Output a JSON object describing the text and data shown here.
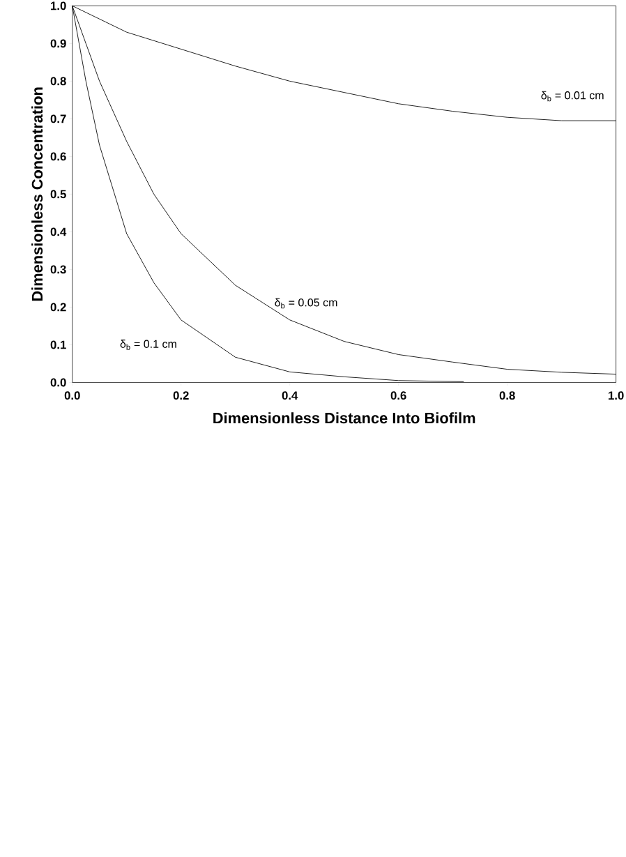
{
  "chart_data": {
    "type": "line",
    "xlabel": "Dimensionless Distance Into Biofilm",
    "ylabel": "Dimensionless Concentration",
    "xlim": [
      0,
      1
    ],
    "ylim": [
      0,
      1
    ],
    "xticks": [
      {
        "value": 0,
        "label": "0.0"
      },
      {
        "value": 0.2,
        "label": "0.2"
      },
      {
        "value": 0.4,
        "label": "0.4"
      },
      {
        "value": 0.6,
        "label": "0.6"
      },
      {
        "value": 0.8,
        "label": "0.8"
      },
      {
        "value": 1,
        "label": "1.0"
      }
    ],
    "yticks": [
      {
        "value": 0,
        "label": "0.0"
      },
      {
        "value": 0.1,
        "label": "0.1"
      },
      {
        "value": 0.2,
        "label": "0.2"
      },
      {
        "value": 0.3,
        "label": "0.3"
      },
      {
        "value": 0.4,
        "label": "0.4"
      },
      {
        "value": 0.5,
        "label": "0.5"
      },
      {
        "value": 0.6,
        "label": "0.6"
      },
      {
        "value": 0.7,
        "label": "0.7"
      },
      {
        "value": 0.8,
        "label": "0.8"
      },
      {
        "value": 0.9,
        "label": "0.9"
      },
      {
        "value": 1,
        "label": "1.0"
      }
    ],
    "grid": false,
    "legend": false,
    "marker": "none",
    "line_style": "solid",
    "series": [
      {
        "name": "δ$_{b}$ = 0.01 cm",
        "color": "#000000",
        "x": [
          0,
          0.05,
          0.1,
          0.2,
          0.3,
          0.4,
          0.5,
          0.6,
          0.7,
          0.8,
          0.9,
          1.0
        ],
        "values": [
          1.0,
          0.965,
          0.93,
          0.885,
          0.84,
          0.8,
          0.77,
          0.74,
          0.72,
          0.704,
          0.695,
          0.695
        ]
      },
      {
        "name": "δ$_{b}$ = 0.05 cm",
        "color": "#000000",
        "x": [
          0,
          0.025,
          0.05,
          0.1,
          0.15,
          0.2,
          0.3,
          0.4,
          0.5,
          0.6,
          0.7,
          0.8,
          0.9,
          1.0
        ],
        "values": [
          1.0,
          0.9,
          0.8,
          0.64,
          0.5,
          0.395,
          0.258,
          0.166,
          0.109,
          0.074,
          0.054,
          0.035,
          0.027,
          0.022
        ]
      },
      {
        "name": "δ$_{b}$ = 0.1 cm",
        "color": "#000000",
        "x": [
          0,
          0.025,
          0.05,
          0.1,
          0.15,
          0.2,
          0.3,
          0.4,
          0.5,
          0.6,
          0.72
        ],
        "values": [
          1.0,
          0.8,
          0.63,
          0.395,
          0.265,
          0.166,
          0.067,
          0.028,
          0.015,
          0.005,
          0.002
        ]
      }
    ]
  }
}
